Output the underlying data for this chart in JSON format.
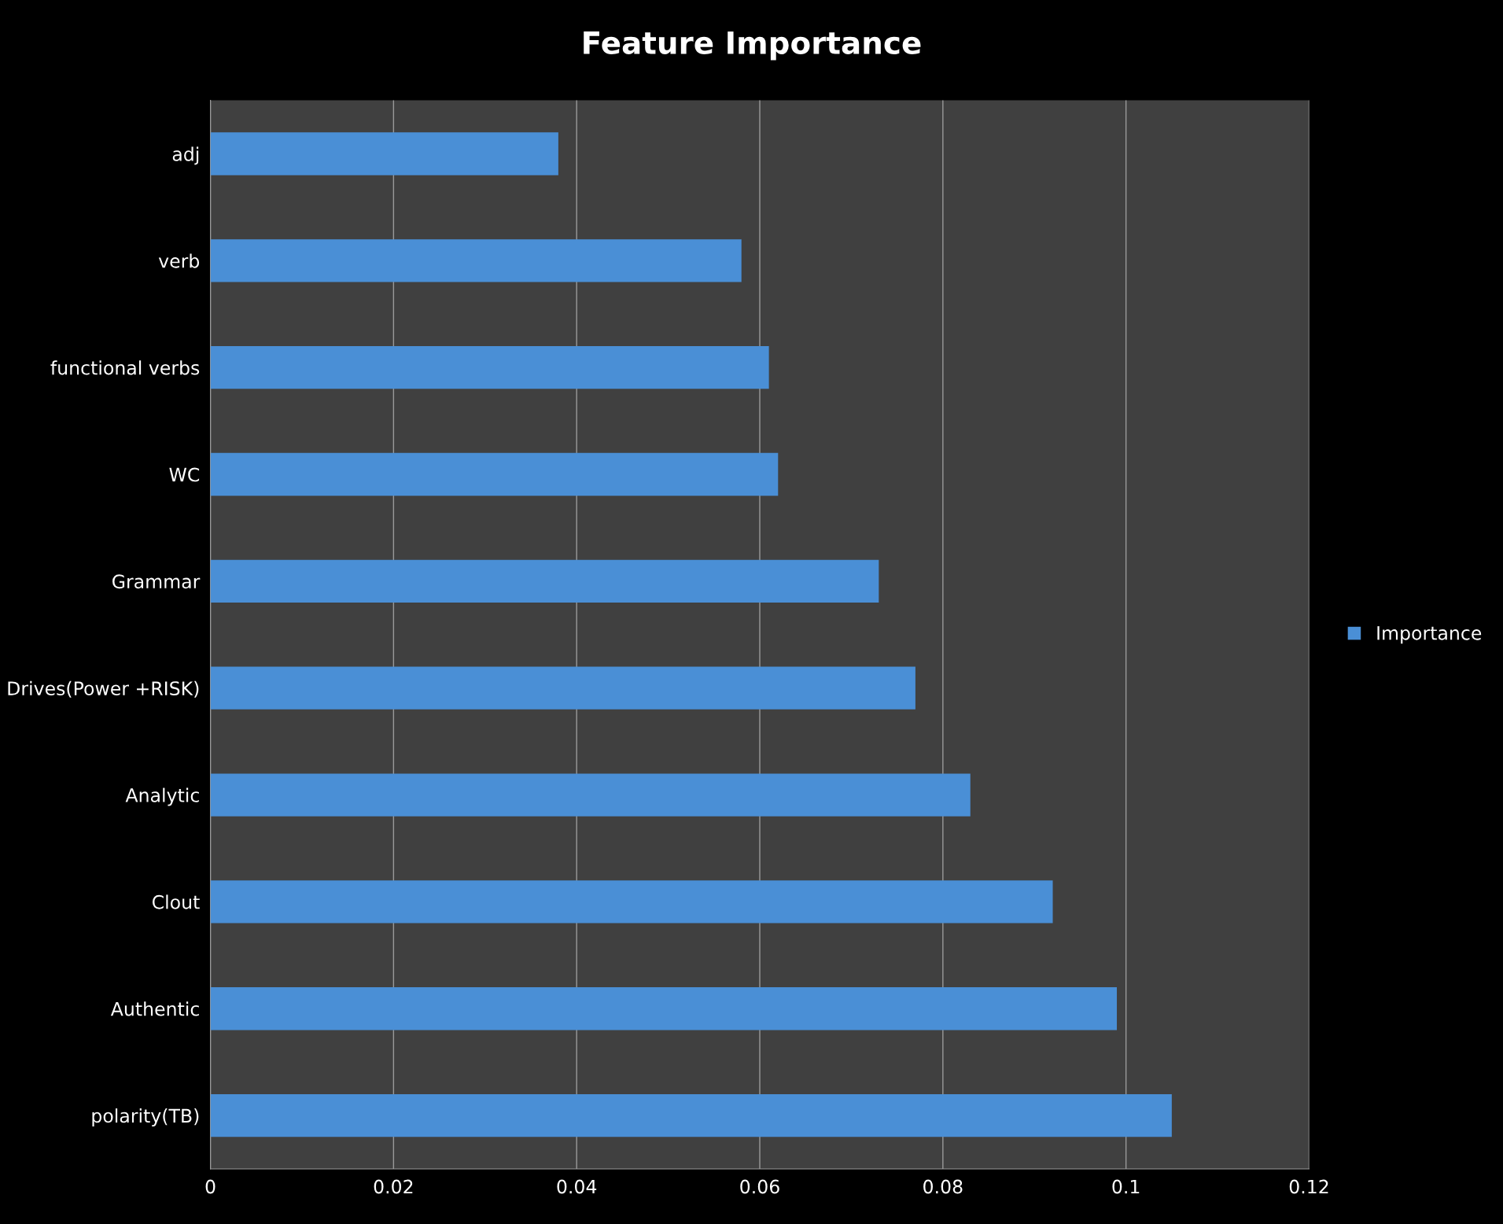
{
  "chart_data": {
    "type": "bar",
    "orientation": "horizontal",
    "title": "Feature Importance",
    "categories": [
      "adj",
      "verb",
      "functional verbs",
      "WC",
      "Grammar",
      "Drives(Power +RISK)",
      "Analytic",
      "Clout",
      "Authentic",
      "polarity(TB)"
    ],
    "series": [
      {
        "name": "Importance",
        "color": "#4a8fd6",
        "values": [
          0.038,
          0.058,
          0.061,
          0.062,
          0.073,
          0.077,
          0.083,
          0.092,
          0.099,
          0.105
        ]
      }
    ],
    "xlim": [
      0,
      0.12
    ],
    "xticks": [
      0,
      0.02,
      0.04,
      0.06,
      0.08,
      0.1,
      0.12
    ],
    "grid": "x",
    "legend": "right"
  }
}
